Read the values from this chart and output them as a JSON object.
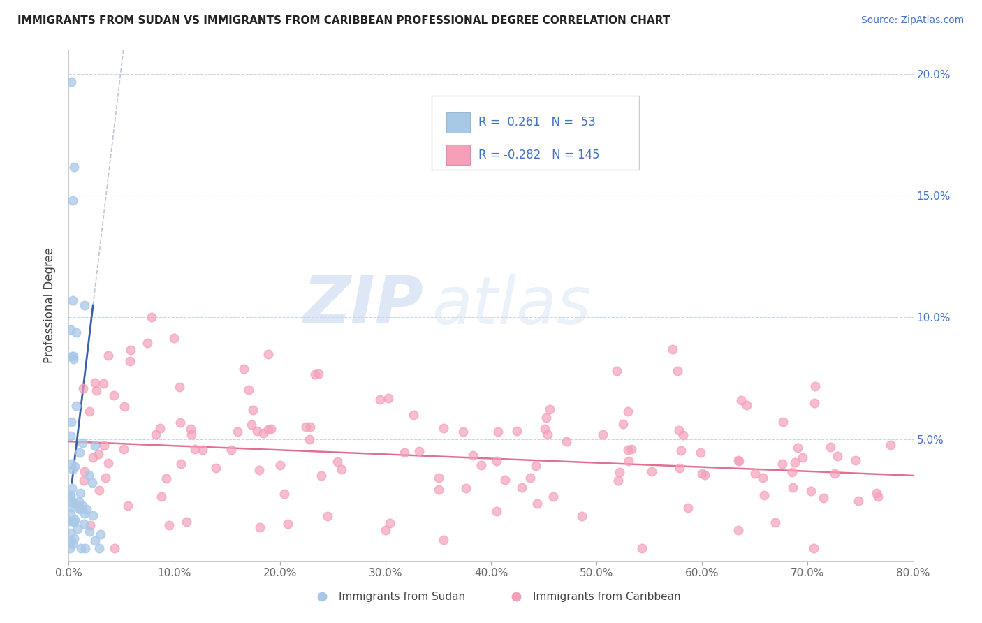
{
  "title": "IMMIGRANTS FROM SUDAN VS IMMIGRANTS FROM CARIBBEAN PROFESSIONAL DEGREE CORRELATION CHART",
  "source_text": "Source: ZipAtlas.com",
  "ylabel": "Professional Degree",
  "color_sudan": "#a8c8e8",
  "color_caribbean": "#f4a0b8",
  "color_text_blue": "#4472c4",
  "color_trendline_sudan": "#3a5fad",
  "color_trendline_carib": "#e07090",
  "color_dashed": "#b0b8c8",
  "background_color": "#ffffff",
  "grid_color": "#c8d4e8",
  "watermark_color": "#dce8f4",
  "xlim": [
    0.0,
    0.8
  ],
  "ylim": [
    0.0,
    0.21
  ],
  "xticks": [
    0.0,
    0.1,
    0.2,
    0.3,
    0.4,
    0.5,
    0.6,
    0.7,
    0.8
  ],
  "yticks": [
    0.0,
    0.05,
    0.1,
    0.15,
    0.2
  ],
  "xtick_labels": [
    "0.0%",
    "10.0%",
    "20.0%",
    "30.0%",
    "40.0%",
    "50.0%",
    "60.0%",
    "70.0%",
    "80.0%"
  ],
  "ytick_labels_right": [
    "",
    "5.0%",
    "10.0%",
    "15.0%",
    "20.0%"
  ],
  "legend_r1": "R =  0.261   N =  53",
  "legend_r2": "R = -0.282   N = 145",
  "sudan_R": 0.261,
  "sudan_N": 53,
  "caribbean_R": -0.282,
  "caribbean_N": 145,
  "watermark_ZIP": "ZIP",
  "watermark_atlas": "atlas",
  "marker_size": 80,
  "marker_linewidth": 1.2,
  "title_fontsize": 11,
  "tick_fontsize": 11,
  "legend_fontsize": 12,
  "source_fontsize": 10
}
